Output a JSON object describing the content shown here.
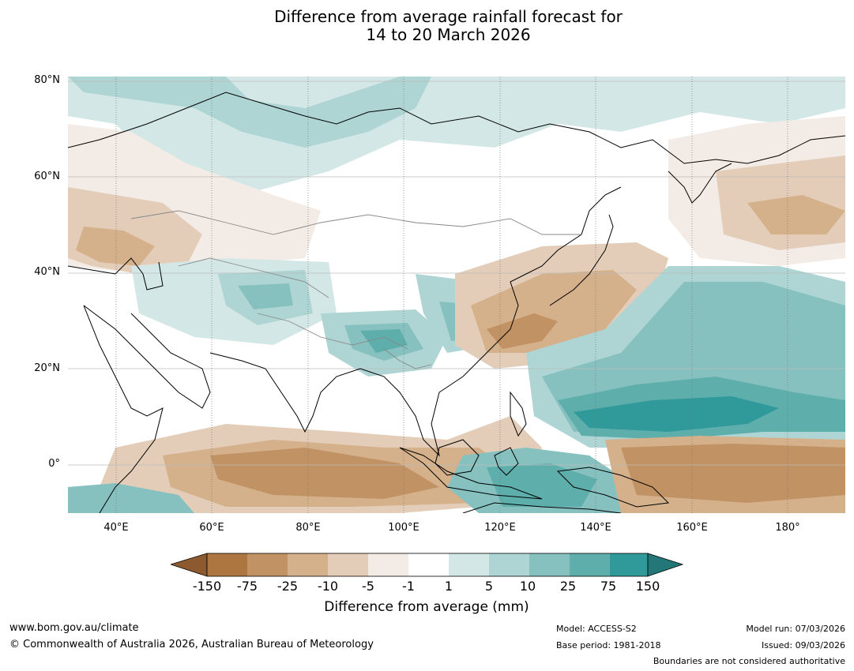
{
  "title": {
    "line1": "Difference from average rainfall forecast for",
    "line2": "14 to 20 March 2026"
  },
  "axes": {
    "lat_labels": [
      "80°N",
      "60°N",
      "40°N",
      "20°N",
      "0°"
    ],
    "lon_labels": [
      "40°E",
      "60°E",
      "80°E",
      "100°E",
      "120°E",
      "140°E",
      "160°E",
      "180°"
    ]
  },
  "map": {
    "projection": "Plate carrée",
    "lon_range": [
      30,
      192
    ],
    "lat_range": [
      -10,
      81
    ],
    "gridlines": true,
    "region": "Asia, Indian Ocean and western Pacific"
  },
  "colorbar": {
    "tick_labels": [
      "-150",
      "-75",
      "-25",
      "-10",
      "-5",
      "-1",
      "1",
      "5",
      "10",
      "25",
      "75",
      "150"
    ],
    "colors": [
      "#ad7540",
      "#c19264",
      "#d4b08b",
      "#e3cdb8",
      "#f3ebe5",
      "#ffffff",
      "#d3e8e6",
      "#aed5d4",
      "#86c1c0",
      "#5eaeac",
      "#30999a"
    ],
    "extend_low_color": "#8c5a2e",
    "extend_high_color": "#247778",
    "label": "Difference from average (mm)"
  },
  "footer": {
    "url": "www.bom.gov.au/climate",
    "copyright": "© Commonwealth of Australia 2026, Australian Bureau of Meteorology",
    "model": "Model: ACCESS-S2",
    "base_period": "Base period: 1981-2018",
    "model_run": "Model run: 07/03/2026",
    "issued": "Issued: 09/03/2026",
    "disclaimer": "Boundaries are not considered authoritative"
  }
}
